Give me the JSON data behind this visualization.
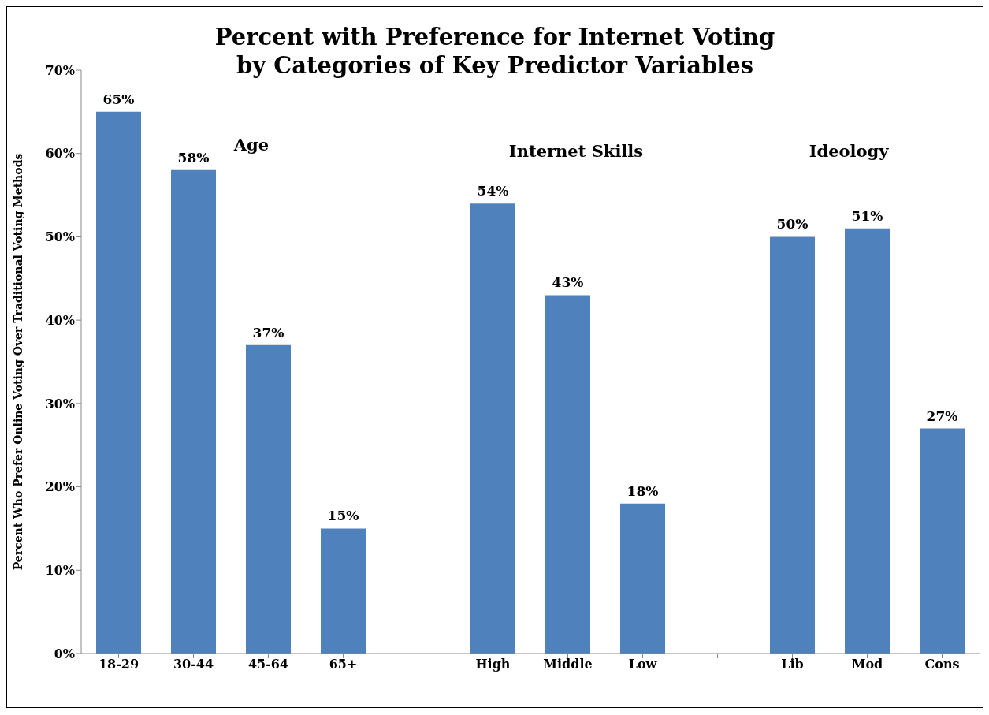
{
  "chart_data": {
    "type": "bar",
    "title": "Percent with Preference for Internet Voting\nby Categories of Key Predictor Variables",
    "ylabel": "Percent Who Prefer Online Voting Over Traditional Voting Methods",
    "categories": [
      "18-29",
      "30-44",
      "45-64",
      "65+",
      null,
      "High",
      "Middle",
      "Low",
      null,
      "Lib",
      "Mod",
      "Cons"
    ],
    "values": [
      65,
      58,
      37,
      15,
      null,
      54,
      43,
      18,
      null,
      50,
      51,
      27
    ],
    "value_labels": [
      "65%",
      "58%",
      "37%",
      "15%",
      null,
      "54%",
      "43%",
      "18%",
      null,
      "50%",
      "51%",
      "27%"
    ],
    "color": "#4f81bd",
    "ylim": [
      0,
      70
    ],
    "yticks": [
      {
        "value": 0,
        "label": "0%"
      },
      {
        "value": 10,
        "label": "10%"
      },
      {
        "value": 20,
        "label": "20%"
      },
      {
        "value": 30,
        "label": "30%"
      },
      {
        "value": 40,
        "label": "40%"
      },
      {
        "value": 50,
        "label": "50%"
      },
      {
        "value": 60,
        "label": "60%"
      },
      {
        "value": 70,
        "label": "70%"
      }
    ],
    "annotations": [
      "Age",
      "Internet Skills",
      "Ideology"
    ],
    "grid": false,
    "legend": false
  }
}
